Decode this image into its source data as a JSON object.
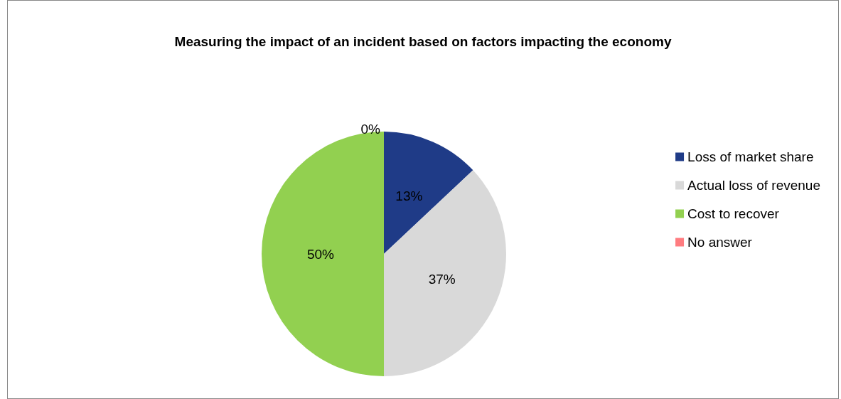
{
  "chart_data": {
    "type": "pie",
    "title": "Measuring the impact of an incident based on factors impacting the economy",
    "categories": [
      "Loss of market share",
      "Actual loss of revenue",
      "Cost to recover",
      "No answer"
    ],
    "values": [
      13,
      37,
      50,
      0
    ],
    "colors": [
      "#1f3b87",
      "#d9d9d9",
      "#92d050",
      "#ff7c80"
    ],
    "value_labels": [
      "13%",
      "37%",
      "50%",
      "0%"
    ],
    "legend": "right"
  }
}
